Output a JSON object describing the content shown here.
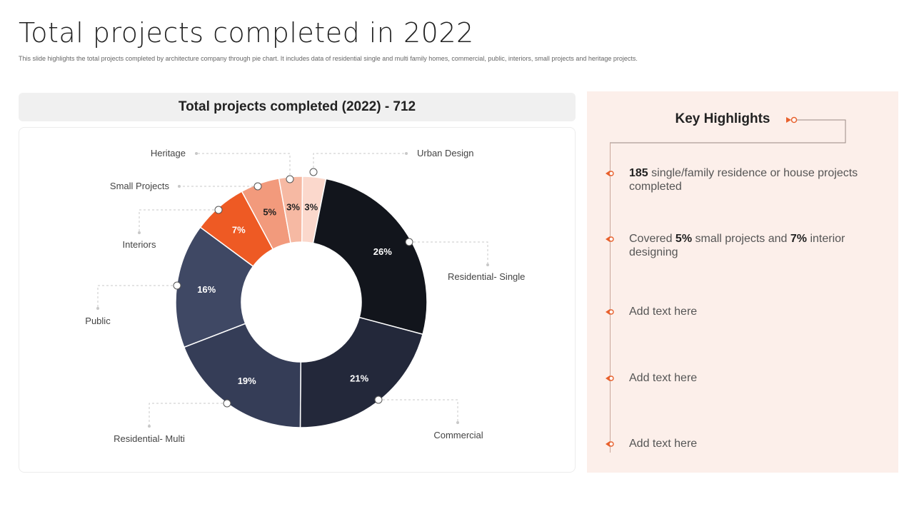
{
  "title": "Total projects completed in 2022",
  "subtitle": "This slide highlights the total projects completed by architecture company through pie chart. It includes data of residential single and multi  family homes, commercial, public, interiors, small projects and heritage projects.",
  "chart_header": "Total projects completed (2022) - 712",
  "chart_data": {
    "type": "pie",
    "donut": true,
    "title": "Total projects completed (2022) - 712",
    "categories": [
      "Urban Design",
      "Residential- Single",
      "Commercial",
      "Residential- Multi",
      "Public",
      "Interiors",
      "Small Projects",
      "Heritage"
    ],
    "values": [
      3,
      26,
      21,
      19,
      16,
      7,
      5,
      3
    ],
    "value_labels": [
      "3%",
      "26%",
      "21%",
      "19%",
      "16%",
      "7%",
      "5%",
      "3%"
    ],
    "colors": [
      "#fbd8cc",
      "#12151c",
      "#23283a",
      "#353d57",
      "#3f4864",
      "#ee5a24",
      "#f29a7c",
      "#f6b9a3"
    ],
    "label_colors": [
      "#222222",
      "#ffffff",
      "#ffffff",
      "#ffffff",
      "#ffffff",
      "#ffffff",
      "#222222",
      "#222222"
    ],
    "legend": "callouts"
  },
  "highlights": {
    "title": "Key Highlights",
    "accent": "#e8602c",
    "items": [
      {
        "bold": "185",
        "text": " single/family residence or house projects completed"
      },
      {
        "pre": "Covered ",
        "bold1": "5%",
        "mid": " small projects and ",
        "bold2": "7%",
        "post": " interior designing"
      },
      {
        "text": "Add text here"
      },
      {
        "text": "Add text here"
      },
      {
        "text": "Add text here"
      }
    ]
  }
}
